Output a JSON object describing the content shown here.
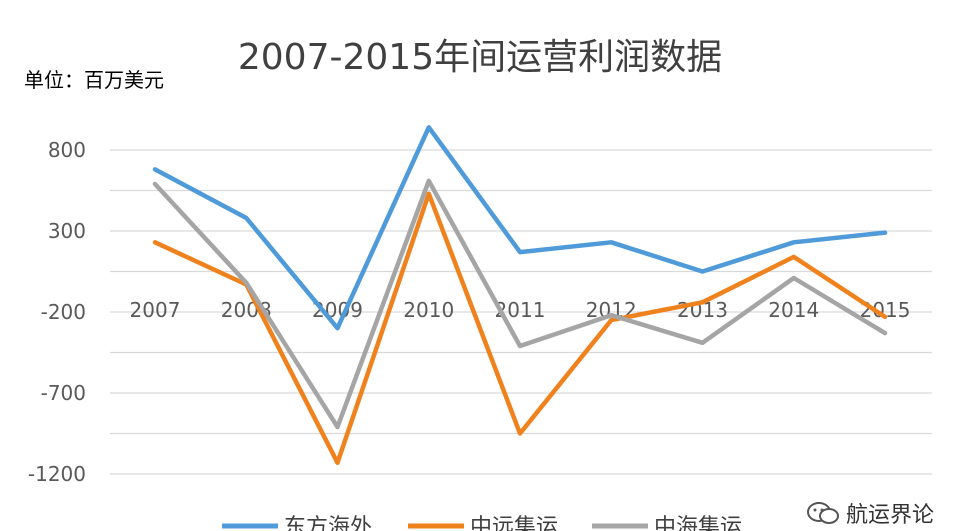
{
  "title": "2007-2015年间运营利润数据",
  "unit_label": "单位：百万美元",
  "watermark": "航运界论",
  "chart_data": {
    "type": "line",
    "categories": [
      "2007",
      "2008",
      "2009",
      "2010",
      "2011",
      "2012",
      "2013",
      "2014",
      "2015"
    ],
    "series": [
      {
        "name": "东方海外",
        "color": "#4f9ad9",
        "values": [
          680,
          380,
          -300,
          940,
          170,
          230,
          50,
          230,
          290
        ]
      },
      {
        "name": "中远集运",
        "color": "#f0821e",
        "values": [
          230,
          -30,
          -1130,
          530,
          -950,
          -250,
          -140,
          140,
          -230
        ]
      },
      {
        "name": "中海集运",
        "color": "#a5a5a5",
        "values": [
          590,
          -20,
          -910,
          610,
          -410,
          -220,
          -390,
          10,
          -330
        ]
      }
    ],
    "ylim": [
      -1200,
      800
    ],
    "yticks": [
      800,
      300,
      -200,
      -700,
      -1200
    ],
    "grid": true,
    "legend_position": "bottom"
  }
}
